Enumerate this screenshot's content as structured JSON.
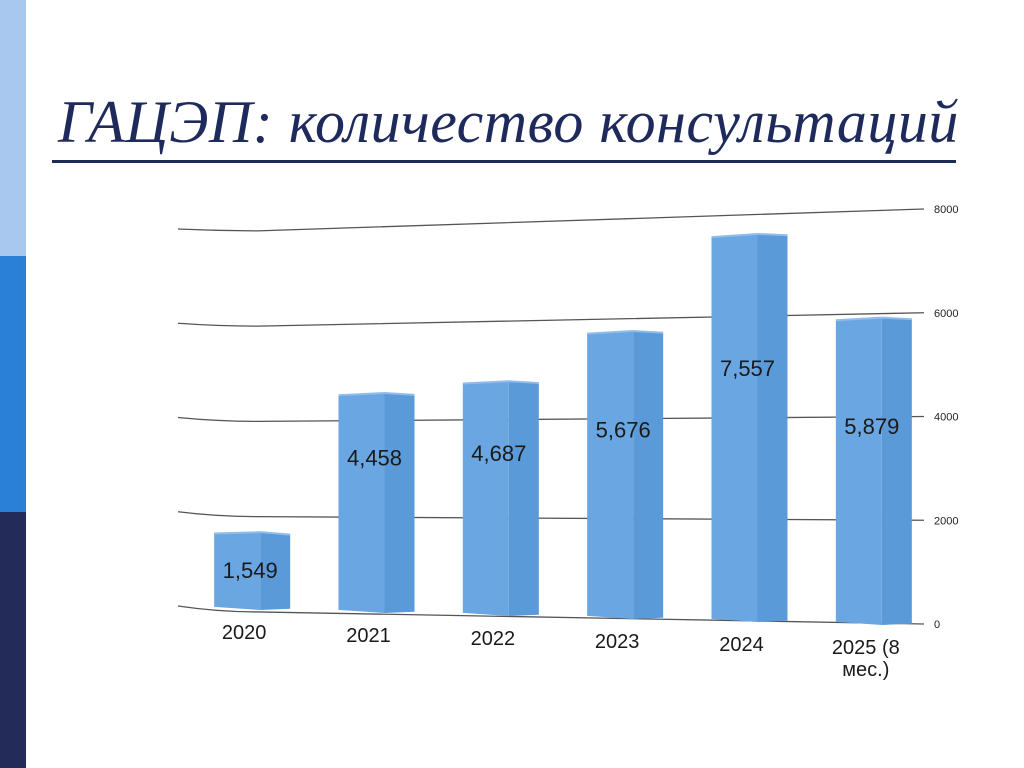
{
  "slide": {
    "title": "ГАЦЭП: количество консультаций"
  },
  "colors": {
    "bar_front": "#6aa6e2",
    "bar_side": "#5b9ad9",
    "bar_top": "#8fbcec",
    "gridline": "#555555",
    "accent_light": "#a9c8ef",
    "accent_mid": "#2a7fd6",
    "accent_dark": "#232c58",
    "title": "#1f2a5c"
  },
  "chart_data": {
    "type": "bar",
    "title": "",
    "xlabel": "",
    "ylabel": "",
    "categories": [
      "2020",
      "2021",
      "2022",
      "2023",
      "2024",
      "2025 (8 мес.)"
    ],
    "category_lines": [
      [
        "2020"
      ],
      [
        "2021"
      ],
      [
        "2022"
      ],
      [
        "2023"
      ],
      [
        "2024"
      ],
      [
        "2025 (8",
        "мес.)"
      ]
    ],
    "values": [
      1549,
      4458,
      4687,
      5676,
      7557,
      5879
    ],
    "value_labels": [
      "1,549",
      "4,458",
      "4,687",
      "5,676",
      "7,557",
      "5,879"
    ],
    "y_ticks": [
      "0",
      "2000",
      "4000",
      "6000",
      "8000"
    ],
    "ylim": [
      0,
      8000
    ],
    "y_axis_side": "right",
    "grid": true,
    "legend": "none"
  }
}
